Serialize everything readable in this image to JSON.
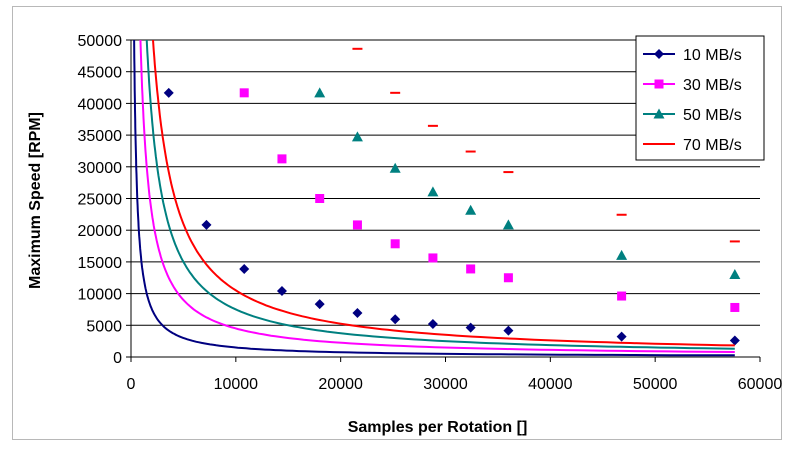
{
  "chart_data": {
    "type": "line",
    "xlabel": "Samples per Rotation []",
    "ylabel": "Maximum Speed [RPM]",
    "xlim": [
      0,
      60000
    ],
    "ylim": [
      0,
      50000
    ],
    "xticks": [
      0,
      10000,
      20000,
      30000,
      40000,
      50000,
      60000
    ],
    "yticks": [
      0,
      5000,
      10000,
      15000,
      20000,
      25000,
      30000,
      35000,
      40000,
      45000,
      50000
    ],
    "grid": "horizontal",
    "legend_position": "top-right",
    "series": [
      {
        "name": "10 MB/s",
        "color": "#000080",
        "marker": "diamond",
        "x": [
          3600,
          7200,
          10800,
          14400,
          18000,
          21600,
          25200,
          28800,
          32400,
          36000,
          46800,
          57600
        ],
        "y": [
          41667,
          20833,
          13889,
          10417,
          8333,
          6944,
          5952,
          5208,
          4630,
          4167,
          3205,
          2604
        ]
      },
      {
        "name": "30 MB/s",
        "color": "#ff00ff",
        "marker": "square",
        "x": [
          10800,
          14400,
          18000,
          21600,
          25200,
          28800,
          32400,
          36000,
          46800,
          57600
        ],
        "y": [
          41667,
          31250,
          25000,
          20833,
          17857,
          15625,
          13889,
          12500,
          9615,
          7813
        ]
      },
      {
        "name": "50 MB/s",
        "color": "#008080",
        "marker": "triangle",
        "x": [
          18000,
          21600,
          25200,
          28800,
          32400,
          36000,
          46800,
          57600
        ],
        "y": [
          41667,
          34722,
          29762,
          26042,
          23148,
          20833,
          16026,
          13021
        ]
      },
      {
        "name": "70 MB/s",
        "color": "#ff0000",
        "marker": "dash",
        "x": [
          21600,
          25200,
          28800,
          32400,
          36000,
          46800,
          57600
        ],
        "y": [
          48611,
          41667,
          36458,
          32407,
          29167,
          22436,
          18229
        ]
      }
    ]
  }
}
